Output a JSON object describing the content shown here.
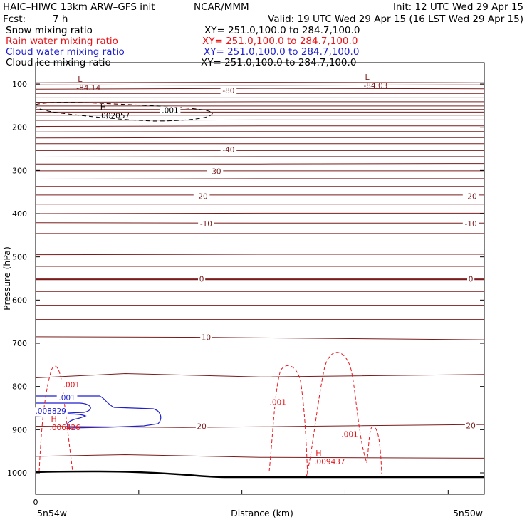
{
  "header": {
    "model": "HAIC–HIWC 13km ARW–GFS init",
    "org": "NCAR/MMM",
    "init": "Init: 12 UTC Wed 29 Apr 15",
    "fcst_label": "Fcst:",
    "fcst_value": "7 h",
    "valid": "Valid: 19 UTC Wed 29 Apr 15 (16 LST Wed 29 Apr 15)",
    "fields": [
      {
        "name": "Snow mixing ratio",
        "xy": "XY= 251.0,100.0 to 284.7,100.0",
        "color": "#000000"
      },
      {
        "name": "Rain water mixing ratio",
        "xy": "XY= 251.0,100.0 to 284.7,100.0",
        "color": "#e8141a"
      },
      {
        "name": "Cloud water mixing ratio",
        "xy": "XY= 251.0,100.0 to 284.7,100.0",
        "color": "#1f1fd0"
      },
      {
        "name": "Cloud ice mixing ratio",
        "xy": "XY= 251.0,100.0 to 284.7,100.0",
        "color": "#000000"
      }
    ]
  },
  "chart_data": {
    "type": "line",
    "ylabel": "Pressure (hPa)",
    "xlabel": "Distance (km)",
    "x_start_label": "5n54w",
    "x_end_label": "5n50w",
    "x_zero_label": "0",
    "y_range_hpa": [
      50,
      1050
    ],
    "y_ticks": [
      100,
      200,
      300,
      400,
      500,
      600,
      700,
      800,
      900,
      1000
    ],
    "x_minor_tick_count": 4,
    "colors": {
      "temperature": "#7a1c1c",
      "rain": "#e8141a",
      "cloud_water": "#1f1fd0",
      "snow": "#000000",
      "ground": "#000000"
    },
    "temperature_contour_labels": [
      {
        "text": "-80",
        "x": 0.43,
        "p": 115
      },
      {
        "text": "-40",
        "x": 0.43,
        "p": 252
      },
      {
        "text": "-30",
        "x": 0.4,
        "p": 302
      },
      {
        "text": "-20",
        "x": 0.37,
        "p": 360
      },
      {
        "text": "-20",
        "x": 0.97,
        "p": 360
      },
      {
        "text": "-10",
        "x": 0.38,
        "p": 423
      },
      {
        "text": "-10",
        "x": 0.97,
        "p": 423
      },
      {
        "text": "0",
        "x": 0.37,
        "p": 551
      },
      {
        "text": "0",
        "x": 0.97,
        "p": 551
      },
      {
        "text": "10",
        "x": 0.38,
        "p": 686
      },
      {
        "text": "20",
        "x": 0.37,
        "p": 892
      },
      {
        "text": "20",
        "x": 0.97,
        "p": 890
      }
    ],
    "extrema_labels": [
      {
        "kind": "L",
        "value": "-84.14",
        "x": 0.11,
        "p": 98,
        "color": "#7a1c1c"
      },
      {
        "kind": "L",
        "value": "-84.03",
        "x": 0.75,
        "p": 93,
        "color": "#7a1c1c"
      },
      {
        "kind": "H",
        "value": ".002057",
        "x": 0.16,
        "p": 163,
        "color": "#000000"
      },
      {
        "kind": "H",
        "value": ".006426",
        "x": 0.05,
        "p": 885,
        "color": "#e8141a"
      },
      {
        "kind": "H",
        "value": ".009437",
        "x": 0.64,
        "p": 964,
        "color": "#e8141a"
      }
    ],
    "contour_value_labels": [
      {
        "text": ".001",
        "x": 0.3,
        "p": 160,
        "color": "#000000"
      },
      {
        "text": ".001",
        "x": 0.08,
        "p": 796,
        "color": "#e8141a"
      },
      {
        "text": ".001",
        "x": 0.07,
        "p": 825,
        "color": "#1f1fd0"
      },
      {
        "text": ".001",
        "x": 0.54,
        "p": 836,
        "color": "#e8141a"
      },
      {
        "text": ".001",
        "x": 0.7,
        "p": 910,
        "color": "#e8141a"
      },
      {
        "text": ".008829",
        "x": 0.005,
        "p": 857,
        "color": "#1f1fd0"
      }
    ]
  }
}
